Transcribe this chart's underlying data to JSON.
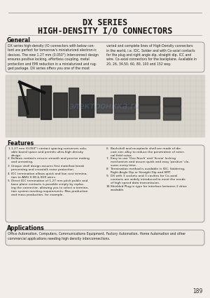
{
  "title_line1": "DX SERIES",
  "title_line2": "HIGH-DENSITY I/O CONNECTORS",
  "page_bg": "#f2ede8",
  "box_bg": "#ede8e2",
  "section_general_title": "General",
  "general_text_col1": "DX series high-density I/O connectors with below con-\ntent are perfect for tomorrow's miniaturized electron-ic\ndevices. The new 1.27 mm (0.050\") Interconnect design\nensures positive locking, effortless coupling, metal\nprotection and EMI reduction in a miniaturized and rug-\nged package. DX series offers you one of the most",
  "general_text_col2": "varied and complete lines of High-Density connectors\nin the world, i.e. IDC, Solder and with Co-axial contacts\nfor the plug and right angle dip, straight dip, ICC and\nwire. Co-axial connectors for the backplane. Available in\n20, 26, 34,50, 60, 80, 100 and 152 way.",
  "section_features_title": "Features",
  "features": [
    [
      "1.",
      "1.27 mm (0.050\") contact spacing conserves valu-\nable board space and permits ultra-high density\ndesign."
    ],
    [
      "2.",
      "Bellows contacts ensure smooth and precise mating\nand unmating."
    ],
    [
      "3.",
      "Unique shell design assures first mate/last break\npreventing and crosstalk noise protection."
    ],
    [
      "4.",
      "IDC termination allows quick and low cost termina-\ntion to AWG 0.08 & B30 wires."
    ],
    [
      "5.",
      "Direct IDC termination of 1.27 mm pitch public and\nbase plane contacts is possible simply by replac-\ning the connector, allowing you to select a termina-\ntion system meeting requirements. Mas production\nand mass production, for example."
    ]
  ],
  "features2": [
    [
      "6.",
      "Backshell and receptacle shell are made of die-\ncast zinc alloy to reduce the penetration of exter-\nnal field noise."
    ],
    [
      "7.",
      "Easy to use 'One-Touch' and 'Screw' locking\nmechanism and assure quick and easy 'positive' clo-\nsures every time."
    ],
    [
      "8.",
      "Termination method is available in IDC, Soldering,\nRight Angle Dip or Straight Dip and SMT."
    ],
    [
      "9.",
      "DX with 3 sockets and 3 cavities for Co-axial\ncontacts are widely introduced to meet the needs\nof high speed data transmission."
    ],
    [
      "10.",
      "Shielded Plug-in type for interface between 2 drive\navailable."
    ]
  ],
  "section_apps_title": "Applications",
  "apps_text": "Office Automation, Computers, Communications Equipment, Factory Automation, Home Automation and other\ncommercial applications needing high density interconnections.",
  "page_number": "189",
  "line_color": "#999999",
  "border_color": "#888888",
  "title_color": "#111111",
  "text_color": "#222222"
}
